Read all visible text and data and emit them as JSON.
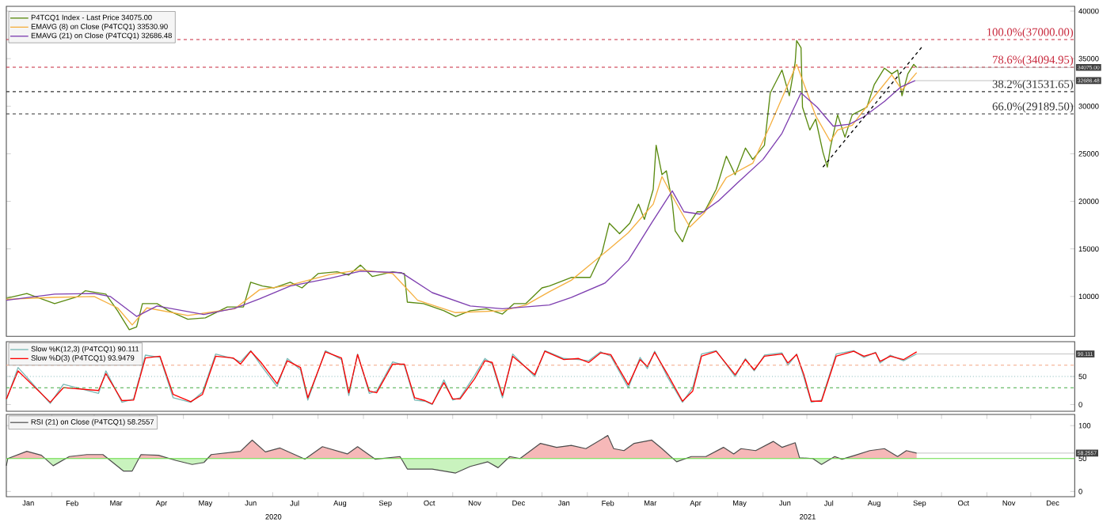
{
  "chart_data": [
    {
      "type": "line",
      "xlim": [
        "2020-01-01",
        "2021-12-31"
      ],
      "ylim": [
        5800,
        40500
      ],
      "yticks": [
        10000,
        15000,
        20000,
        25000,
        30000,
        35000,
        40000
      ],
      "tick_labels": "y",
      "legend": "top left",
      "series": [
        {
          "name": "P4TCQ1 Index - Last Price 34075.00",
          "color": "#5a8a10",
          "x": [
            "2020-01-01",
            "2020-01-15",
            "2020-02-03",
            "2020-02-19",
            "2020-02-24",
            "2020-03-09",
            "2020-03-17",
            "2020-03-25",
            "2020-03-30",
            "2020-04-03",
            "2020-04-13",
            "2020-04-21",
            "2020-05-04",
            "2020-05-16",
            "2020-05-31",
            "2020-06-11",
            "2020-06-16",
            "2020-06-24",
            "2020-07-02",
            "2020-07-13",
            "2020-07-21",
            "2020-08-01",
            "2020-08-14",
            "2020-08-22",
            "2020-08-30",
            "2020-09-07",
            "2020-09-21",
            "2020-09-29",
            "2020-10-01",
            "2020-10-12",
            "2020-10-26",
            "2020-11-03",
            "2020-11-13",
            "2020-11-24",
            "2020-12-05",
            "2020-12-13",
            "2020-12-21",
            "2021-01-01",
            "2021-01-06",
            "2021-01-21",
            "2021-02-03",
            "2021-02-11",
            "2021-02-16",
            "2021-02-23",
            "2021-03-02",
            "2021-03-08",
            "2021-03-12",
            "2021-03-18",
            "2021-03-20",
            "2021-03-24",
            "2021-03-27",
            "2021-03-31",
            "2021-04-02",
            "2021-04-07",
            "2021-04-12",
            "2021-04-17",
            "2021-04-22",
            "2021-04-30",
            "2021-05-07",
            "2021-05-13",
            "2021-05-20",
            "2021-05-25",
            "2021-06-02",
            "2021-06-06",
            "2021-06-14",
            "2021-06-19",
            "2021-06-23",
            "2021-06-24",
            "2021-06-27",
            "2021-06-28",
            "2021-07-03",
            "2021-07-07",
            "2021-07-12",
            "2021-07-15",
            "2021-07-17",
            "2021-07-22",
            "2021-07-27",
            "2021-08-01",
            "2021-08-06",
            "2021-08-11",
            "2021-08-16",
            "2021-08-23",
            "2021-08-28",
            "2021-09-01",
            "2021-09-04",
            "2021-09-08",
            "2021-09-12",
            "2021-09-14"
          ],
          "values": [
            9800,
            10300,
            9250,
            10000,
            10600,
            10250,
            8500,
            6500,
            6800,
            9250,
            9250,
            8500,
            7600,
            7750,
            8900,
            8900,
            11500,
            11100,
            10900,
            11500,
            10900,
            12400,
            12600,
            12250,
            13300,
            12100,
            12600,
            12400,
            9400,
            9250,
            8500,
            7900,
            8500,
            8700,
            8150,
            9250,
            9250,
            10900,
            11100,
            12000,
            12000,
            14600,
            17700,
            16600,
            17700,
            19700,
            18100,
            21250,
            25900,
            22800,
            23200,
            19900,
            16900,
            15750,
            17750,
            18900,
            18900,
            21250,
            24750,
            22800,
            25600,
            24400,
            25900,
            31400,
            33800,
            31100,
            34600,
            36900,
            36150,
            29900,
            27500,
            28650,
            25150,
            23600,
            25600,
            29100,
            26750,
            29100,
            29500,
            29900,
            32250,
            34000,
            33400,
            33800,
            31100,
            33400,
            34400,
            34075
          ]
        },
        {
          "name": "EMAVG (8)  on Close (P4TCQ1) 33530.90",
          "color": "#f5b041",
          "x": [
            "2020-01-01",
            "2020-02-03",
            "2020-03-01",
            "2020-03-17",
            "2020-03-27",
            "2020-04-06",
            "2020-05-04",
            "2020-06-05",
            "2020-06-22",
            "2020-07-13",
            "2020-08-09",
            "2020-08-30",
            "2020-09-21",
            "2020-10-08",
            "2020-11-03",
            "2020-12-05",
            "2020-12-21",
            "2021-01-06",
            "2021-01-21",
            "2021-02-16",
            "2021-03-01",
            "2021-03-18",
            "2021-03-24",
            "2021-04-02",
            "2021-04-12",
            "2021-04-22",
            "2021-05-07",
            "2021-05-25",
            "2021-06-06",
            "2021-06-24",
            "2021-07-07",
            "2021-07-17",
            "2021-07-22",
            "2021-08-01",
            "2021-08-16",
            "2021-08-28",
            "2021-09-04",
            "2021-09-14"
          ],
          "values": [
            9700,
            9900,
            10000,
            8800,
            7000,
            8800,
            8000,
            8700,
            10700,
            11200,
            12300,
            12800,
            12400,
            9600,
            8300,
            8500,
            9100,
            10500,
            11700,
            15000,
            16700,
            19700,
            22600,
            20000,
            17300,
            18800,
            22500,
            24000,
            28000,
            34400,
            29000,
            26300,
            27500,
            28000,
            31000,
            33300,
            31700,
            33530.9
          ]
        },
        {
          "name": "EMAVG (21)  on Close (P4TCQ1) 32686.48",
          "color": "#7e3fb0",
          "x": [
            "2020-01-01",
            "2020-02-03",
            "2020-03-01",
            "2020-03-12",
            "2020-03-30",
            "2020-04-13",
            "2020-05-15",
            "2020-06-05",
            "2020-06-22",
            "2020-07-13",
            "2020-08-09",
            "2020-08-30",
            "2020-09-27",
            "2020-10-18",
            "2020-11-13",
            "2020-12-05",
            "2020-12-21",
            "2021-01-06",
            "2021-01-21",
            "2021-02-13",
            "2021-03-01",
            "2021-03-17",
            "2021-03-31",
            "2021-04-08",
            "2021-04-19",
            "2021-05-02",
            "2021-05-15",
            "2021-06-01",
            "2021-06-14",
            "2021-06-27",
            "2021-07-08",
            "2021-07-19",
            "2021-07-30",
            "2021-08-09",
            "2021-08-23",
            "2021-09-03",
            "2021-09-13"
          ],
          "values": [
            9600,
            10250,
            10300,
            10000,
            7900,
            9000,
            8100,
            8750,
            9750,
            11100,
            11900,
            12650,
            12500,
            10400,
            9000,
            8700,
            8900,
            9100,
            9900,
            11400,
            13800,
            17750,
            21100,
            18900,
            18650,
            20100,
            22000,
            24400,
            27150,
            31400,
            29900,
            27900,
            28100,
            28900,
            30500,
            32000,
            32686.48
          ]
        },
        {
          "type": "line",
          "line_style": "dashed",
          "color": "#000000",
          "x": [
            "2021-07-12",
            "2021-09-18"
          ],
          "values": [
            23600,
            36300
          ]
        }
      ],
      "ref_lines": [
        {
          "axis": "y",
          "value": 37000,
          "label": "100.0%(37000.00)",
          "color": "#c8283c",
          "line_style": "dashed"
        },
        {
          "axis": "y",
          "value": 34094.95,
          "label": "78.6%(34094.95)",
          "color": "#c8283c",
          "line_style": "dashed"
        },
        {
          "axis": "y",
          "value": 31531.65,
          "label": "38.2%(31531.65)",
          "color": "#333333",
          "line_style": "dashed"
        },
        {
          "axis": "y",
          "value": 29189.5,
          "label": "66.0%(29189.50)",
          "color": "#333333",
          "line_style": "dashed"
        }
      ],
      "annotations": [
        {
          "text": "34075.00",
          "x": "2021-09-14",
          "y": 34075
        },
        {
          "text": "32686.48",
          "x": "2021-09-13",
          "y": 32686.48
        }
      ]
    },
    {
      "type": "line",
      "xlim": [
        "2020-01-01",
        "2021-12-31"
      ],
      "ylim": [
        -12,
        112
      ],
      "yticks": [
        0,
        50
      ],
      "tick_labels": "y",
      "legend": "top left",
      "x": [
        "2020-01-01",
        "2020-01-09",
        "2020-01-16",
        "2020-01-21",
        "2020-01-31",
        "2020-02-09",
        "2020-02-16",
        "2020-02-23",
        "2020-03-04",
        "2020-03-09",
        "2020-03-20",
        "2020-03-28",
        "2020-04-05",
        "2020-04-15",
        "2020-04-24",
        "2020-05-06",
        "2020-05-14",
        "2020-05-23",
        "2020-06-04",
        "2020-06-09",
        "2020-06-16",
        "2020-06-23",
        "2020-07-04",
        "2020-07-11",
        "2020-07-20",
        "2020-07-25",
        "2020-08-06",
        "2020-08-17",
        "2020-08-22",
        "2020-08-28",
        "2020-09-05",
        "2020-09-10",
        "2020-09-21",
        "2020-09-29",
        "2020-10-06",
        "2020-10-13",
        "2020-10-18",
        "2020-10-26",
        "2020-11-01",
        "2020-11-06",
        "2020-11-16",
        "2020-11-23",
        "2020-11-28",
        "2020-12-05",
        "2020-12-12",
        "2020-12-27",
        "2021-01-03",
        "2021-01-16",
        "2021-01-26",
        "2021-02-02",
        "2021-02-10",
        "2021-02-17",
        "2021-03-01",
        "2021-03-09",
        "2021-03-14",
        "2021-03-19",
        "2021-03-28",
        "2021-04-07",
        "2021-04-14",
        "2021-04-20",
        "2021-04-30",
        "2021-05-13",
        "2021-05-20",
        "2021-05-26",
        "2021-06-02",
        "2021-06-14",
        "2021-06-18",
        "2021-06-24",
        "2021-06-29",
        "2021-07-04",
        "2021-07-11",
        "2021-07-21",
        "2021-08-02",
        "2021-08-09",
        "2021-08-17",
        "2021-08-20",
        "2021-08-27",
        "2021-09-05",
        "2021-09-14"
      ],
      "series": [
        {
          "name": "Slow %K(12,3) (P4TCQ1) 90.111",
          "color": "#79b8b5",
          "values": [
            8,
            66,
            null,
            null,
            2,
            36,
            null,
            null,
            20,
            60,
            4,
            10,
            88,
            84,
            12,
            4,
            22,
            90,
            82,
            76,
            96,
            70,
            32,
            82,
            62,
            8,
            96,
            80,
            16,
            90,
            20,
            24,
            76,
            70,
            8,
            6,
            0,
            44,
            8,
            12,
            52,
            82,
            72,
            12,
            90,
            50,
            96,
            82,
            80,
            78,
            94,
            86,
            30,
            84,
            64,
            95,
            48,
            4,
            30,
            90,
            96,
            50,
            82,
            60,
            88,
            92,
            70,
            90,
            48,
            4,
            8,
            90,
            96,
            84,
            93,
            74,
            88,
            78,
            90.111
          ]
        },
        {
          "name": "Slow %D(3) (P4TCQ1) 93.9479",
          "color": "#ff0000",
          "values": [
            10,
            60,
            null,
            null,
            4,
            30,
            null,
            null,
            25,
            55,
            7,
            8,
            83,
            86,
            18,
            5,
            18,
            86,
            83,
            72,
            95,
            75,
            37,
            78,
            66,
            12,
            94,
            83,
            21,
            89,
            24,
            21,
            72,
            72,
            12,
            7,
            1,
            39,
            10,
            10,
            46,
            78,
            75,
            16,
            86,
            53,
            95,
            80,
            82,
            75,
            92,
            89,
            35,
            80,
            68,
            93,
            53,
            6,
            24,
            86,
            95,
            53,
            80,
            62,
            86,
            90,
            74,
            89,
            53,
            6,
            6,
            86,
            95,
            86,
            92,
            77,
            86,
            80,
            93.9479
          ]
        }
      ],
      "ref_lines": [
        {
          "axis": "y",
          "value": 70,
          "color": "#f4a582",
          "line_style": "dashed"
        },
        {
          "axis": "y",
          "value": 50,
          "color": "#88bbbb",
          "line_style": "dotted"
        },
        {
          "axis": "y",
          "value": 30,
          "color": "#44aa44",
          "line_style": "dashed"
        }
      ],
      "annotations": [
        {
          "text": "90.111",
          "x": "2021-09-14",
          "y": 90.111
        }
      ]
    },
    {
      "type": "area",
      "xlim": [
        "2020-01-01",
        "2021-12-31"
      ],
      "ylim": [
        -8,
        117
      ],
      "yticks": [
        0,
        50,
        100
      ],
      "legend": "top left",
      "xticks": [
        {
          "value": "2020-02-01",
          "label": null
        },
        {
          "value": "2020-03-01",
          "label": null
        },
        {
          "value": "2020-04-01",
          "label": null
        },
        {
          "value": "2020-05-01",
          "label": null
        },
        {
          "value": "2020-06-01",
          "label": null
        },
        {
          "value": "2020-07-01",
          "label": null
        },
        {
          "value": "2020-08-01",
          "label": null
        },
        {
          "value": "2020-09-01",
          "label": null
        },
        {
          "value": "2020-10-01",
          "label": null
        },
        {
          "value": "2020-11-01",
          "label": null
        },
        {
          "value": "2020-12-01",
          "label": null
        },
        {
          "value": "2021-01-01",
          "label": null
        },
        {
          "value": "2021-02-01",
          "label": null
        },
        {
          "value": "2021-03-01",
          "label": null
        },
        {
          "value": "2021-04-01",
          "label": null
        },
        {
          "value": "2021-05-01",
          "label": null
        },
        {
          "value": "2021-06-01",
          "label": null
        },
        {
          "value": "2021-07-01",
          "label": null
        },
        {
          "value": "2021-08-01",
          "label": null
        },
        {
          "value": "2021-09-01",
          "label": null
        },
        {
          "value": "2021-10-01",
          "label": null
        },
        {
          "value": "2021-11-01",
          "label": null
        },
        {
          "value": "2021-12-01",
          "label": null
        },
        {
          "value": "2020-01-16",
          "label": "Jan"
        },
        {
          "value": "2020-02-15",
          "label": "Feb"
        },
        {
          "value": "2020-03-16",
          "label": "Mar"
        },
        {
          "value": "2020-04-16",
          "label": "Apr"
        },
        {
          "value": "2020-05-16",
          "label": "May"
        },
        {
          "value": "2020-06-16",
          "label": "Jun"
        },
        {
          "value": "2020-07-16",
          "label": "Jul"
        },
        {
          "value": "2020-08-16",
          "label": "Aug"
        },
        {
          "value": "2020-09-16",
          "label": "Sep"
        },
        {
          "value": "2020-10-16",
          "label": "Oct"
        },
        {
          "value": "2020-11-16",
          "label": "Nov"
        },
        {
          "value": "2020-12-16",
          "label": "Dec"
        },
        {
          "value": "2021-01-16",
          "label": "Jan"
        },
        {
          "value": "2021-02-15",
          "label": "Feb"
        },
        {
          "value": "2021-03-16",
          "label": "Mar"
        },
        {
          "value": "2021-04-16",
          "label": "Apr"
        },
        {
          "value": "2021-05-16",
          "label": "May"
        },
        {
          "value": "2021-06-16",
          "label": "Jun"
        },
        {
          "value": "2021-07-16",
          "label": "Jul"
        },
        {
          "value": "2021-08-16",
          "label": "Aug"
        },
        {
          "value": "2021-09-16",
          "label": "Sep"
        },
        {
          "value": "2021-10-16",
          "label": "Oct"
        },
        {
          "value": "2021-11-16",
          "label": "Nov"
        },
        {
          "value": "2021-12-16",
          "label": "Dec"
        }
      ],
      "series": [
        {
          "name": "RSI (21)  on Close (P4TCQ1) 58.2557",
          "color": "#f6b8b8",
          "x": [
            "2020-01-01",
            "2020-01-02",
            "2020-01-15",
            "2020-01-25",
            "2020-02-02",
            "2020-02-13",
            "2020-02-25",
            "2020-03-07",
            "2020-03-21",
            "2020-03-27",
            "2020-04-02",
            "2020-04-14",
            "2020-04-26",
            "2020-05-07",
            "2020-05-15",
            "2020-05-20",
            "2020-06-09",
            "2020-06-17",
            "2020-06-26",
            "2020-07-06",
            "2020-07-23",
            "2020-08-04",
            "2020-08-21",
            "2020-08-28",
            "2020-09-09",
            "2020-09-26",
            "2020-10-01",
            "2020-10-18",
            "2020-11-03",
            "2020-11-13",
            "2020-11-25",
            "2020-12-02",
            "2020-12-10",
            "2020-12-17",
            "2020-12-31",
            "2021-01-11",
            "2021-01-21",
            "2021-01-31",
            "2021-02-15",
            "2021-02-19",
            "2021-02-26",
            "2021-03-05",
            "2021-03-17",
            "2021-03-24",
            "2021-04-03",
            "2021-04-13",
            "2021-04-23",
            "2021-05-05",
            "2021-05-12",
            "2021-05-17",
            "2021-05-27",
            "2021-06-08",
            "2021-06-14",
            "2021-06-23",
            "2021-06-26",
            "2021-07-05",
            "2021-07-11",
            "2021-07-20",
            "2021-07-25",
            "2021-08-03",
            "2021-08-13",
            "2021-08-23",
            "2021-09-01",
            "2021-09-07",
            "2021-09-14"
          ],
          "values": [
            39,
            50,
            61,
            55,
            39,
            53,
            56,
            56,
            31,
            31,
            56,
            55,
            47,
            41,
            44,
            56,
            61,
            78,
            60,
            66,
            49,
            68,
            57,
            68,
            49,
            53,
            34,
            34,
            28,
            38,
            45,
            36,
            53,
            50,
            73,
            67,
            70,
            65,
            85,
            65,
            62,
            73,
            78,
            65,
            45,
            53,
            53,
            67,
            57,
            65,
            62,
            76,
            67,
            74,
            51,
            50,
            41,
            53,
            49,
            55,
            62,
            65,
            53,
            62,
            58.2557
          ]
        }
      ],
      "ref_lines": [
        {
          "axis": "y",
          "value": 50,
          "color": "#66dd44",
          "line_style": "solid"
        }
      ],
      "annotations": [
        "2020",
        "2021",
        {
          "text": "58.2557",
          "x": "2021-09-14",
          "y": 58.2557
        }
      ]
    }
  ]
}
